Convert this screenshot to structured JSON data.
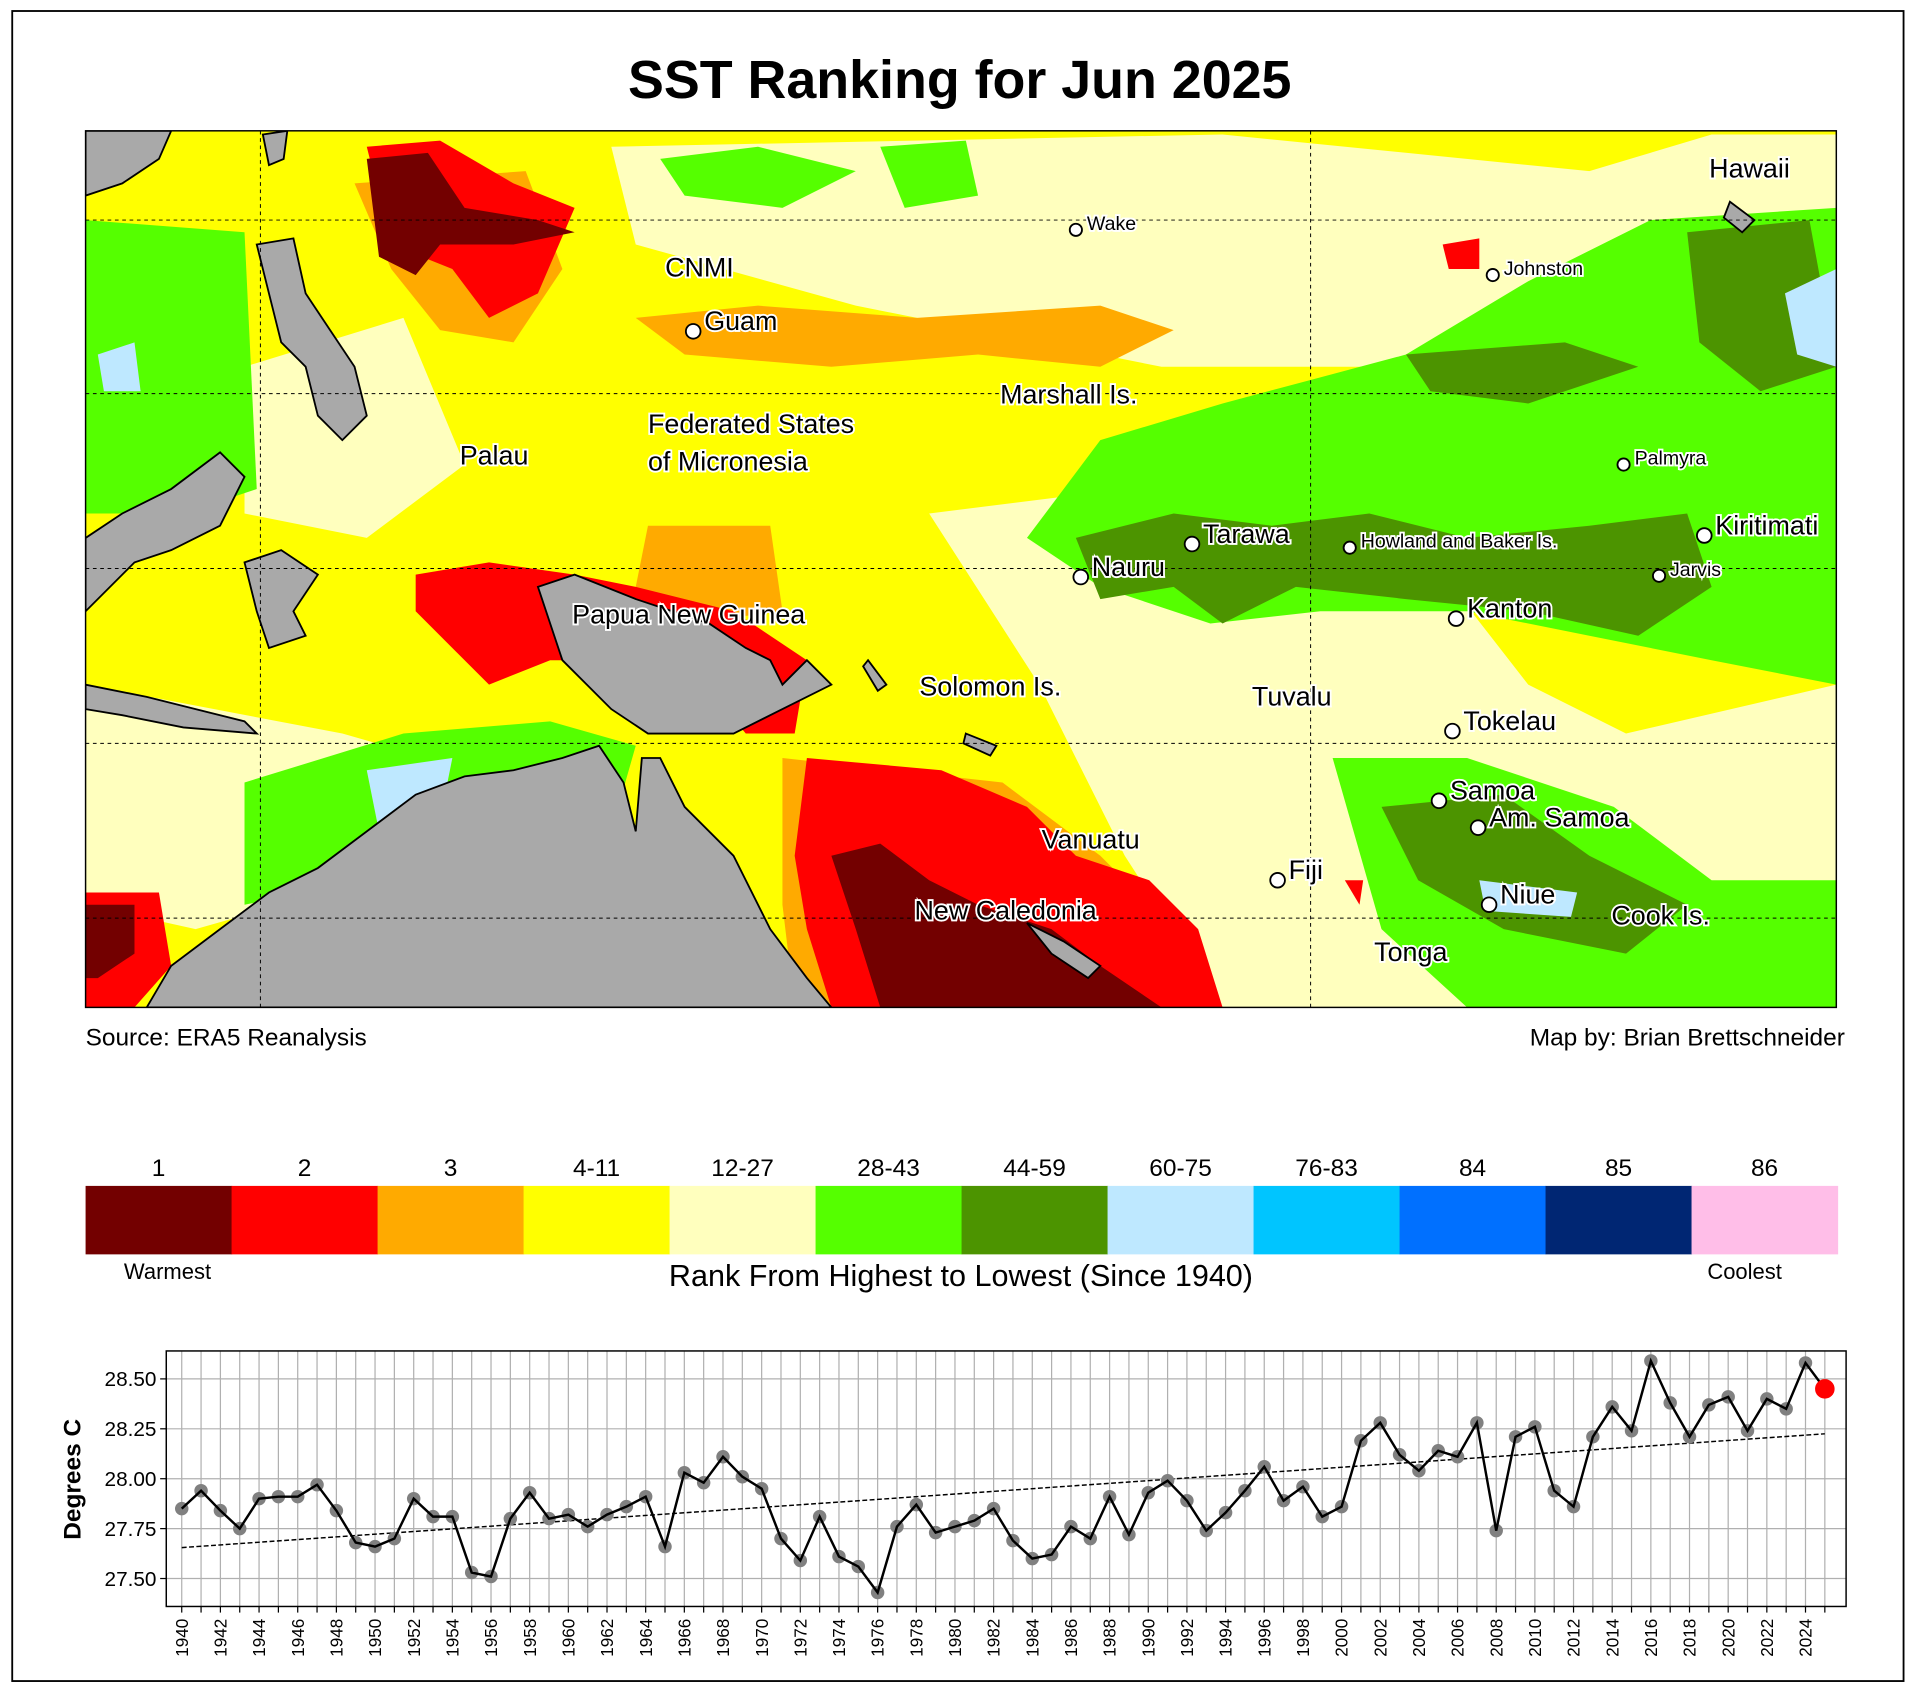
{
  "title": "SST Ranking for Jun 2025",
  "source": "Source: ERA5 Reanalysis",
  "credit": "Map by: Brian Brettschneider",
  "map_labels": [
    {
      "name": "Hawaii",
      "dot": false,
      "small": false
    },
    {
      "name": "Wake",
      "dot": true,
      "small": true
    },
    {
      "name": "Johnston",
      "dot": true,
      "small": true
    },
    {
      "name": "CNMI",
      "dot": false,
      "small": false
    },
    {
      "name": "Guam",
      "dot": true,
      "small": false
    },
    {
      "name": "Marshall Is.",
      "dot": false,
      "small": false
    },
    {
      "name": "Palau",
      "dot": false,
      "small": false
    },
    {
      "name": "Federated States",
      "dot": false,
      "small": false
    },
    {
      "name": "of Micronesia",
      "dot": false,
      "small": false
    },
    {
      "name": "Palmyra",
      "dot": true,
      "small": true
    },
    {
      "name": "Tarawa",
      "dot": true,
      "small": false
    },
    {
      "name": "Howland and Baker Is.",
      "dot": true,
      "small": true
    },
    {
      "name": "Kiritimati",
      "dot": true,
      "small": false
    },
    {
      "name": "Nauru",
      "dot": true,
      "small": false
    },
    {
      "name": "Jarvis",
      "dot": true,
      "small": true
    },
    {
      "name": "Papua New Guinea",
      "dot": false,
      "small": false
    },
    {
      "name": "Kanton",
      "dot": true,
      "small": false
    },
    {
      "name": "Solomon Is.",
      "dot": false,
      "small": false
    },
    {
      "name": "Tuvalu",
      "dot": false,
      "small": false
    },
    {
      "name": "Tokelau",
      "dot": true,
      "small": false
    },
    {
      "name": "Samoa",
      "dot": true,
      "small": false
    },
    {
      "name": "Am. Samoa",
      "dot": true,
      "small": false
    },
    {
      "name": "Vanuatu",
      "dot": false,
      "small": false
    },
    {
      "name": "Fiji",
      "dot": true,
      "small": false
    },
    {
      "name": "Niue",
      "dot": true,
      "small": false
    },
    {
      "name": "New Caledonia",
      "dot": false,
      "small": false
    },
    {
      "name": "Cook Is.",
      "dot": false,
      "small": false
    },
    {
      "name": "Tonga",
      "dot": false,
      "small": false
    }
  ],
  "legend": {
    "title": "Rank From Highest to Lowest (Since 1940)",
    "warm_label": "Warmest",
    "cool_label": "Coolest",
    "bins": [
      {
        "label": "1",
        "color": "#730000"
      },
      {
        "label": "2",
        "color": "#ff0000"
      },
      {
        "label": "3",
        "color": "#ffaa00"
      },
      {
        "label": "4-11",
        "color": "#ffff00"
      },
      {
        "label": "12-27",
        "color": "#ffffbe"
      },
      {
        "label": "28-43",
        "color": "#55ff00"
      },
      {
        "label": "44-59",
        "color": "#4c9400"
      },
      {
        "label": "60-75",
        "color": "#bee8ff"
      },
      {
        "label": "76-83",
        "color": "#00c5ff"
      },
      {
        "label": "84",
        "color": "#0070ff"
      },
      {
        "label": "85",
        "color": "#002673"
      },
      {
        "label": "86",
        "color": "#ffbee8"
      }
    ]
  },
  "chart_data": {
    "type": "line",
    "title": "",
    "xlabel": "",
    "ylabel": "Degrees C",
    "ylim": [
      27.36,
      28.64
    ],
    "yticks": [
      "27.50",
      "27.75",
      "28.00",
      "28.25",
      "28.50"
    ],
    "xlim": [
      1939.2,
      2026.1
    ],
    "grid": true,
    "x": [
      1940,
      1941,
      1942,
      1943,
      1944,
      1945,
      1946,
      1947,
      1948,
      1949,
      1950,
      1951,
      1952,
      1953,
      1954,
      1955,
      1956,
      1957,
      1958,
      1959,
      1960,
      1961,
      1962,
      1963,
      1964,
      1965,
      1966,
      1967,
      1968,
      1969,
      1970,
      1971,
      1972,
      1973,
      1974,
      1975,
      1976,
      1977,
      1978,
      1979,
      1980,
      1981,
      1982,
      1983,
      1984,
      1985,
      1986,
      1987,
      1988,
      1989,
      1990,
      1991,
      1992,
      1993,
      1994,
      1995,
      1996,
      1997,
      1998,
      1999,
      2000,
      2001,
      2002,
      2003,
      2004,
      2005,
      2006,
      2007,
      2008,
      2009,
      2010,
      2011,
      2012,
      2013,
      2014,
      2015,
      2016,
      2017,
      2018,
      2019,
      2020,
      2021,
      2022,
      2023,
      2024,
      2025
    ],
    "series": [
      {
        "name": "June SST",
        "values": [
          27.85,
          27.94,
          27.84,
          27.75,
          27.9,
          27.91,
          27.91,
          27.97,
          27.84,
          27.68,
          27.66,
          27.7,
          27.9,
          27.81,
          27.81,
          27.53,
          27.51,
          27.8,
          27.93,
          27.8,
          27.82,
          27.76,
          27.82,
          27.86,
          27.91,
          27.66,
          28.03,
          27.98,
          28.11,
          28.01,
          27.95,
          27.7,
          27.59,
          27.81,
          27.61,
          27.56,
          27.43,
          27.76,
          27.87,
          27.73,
          27.76,
          27.79,
          27.85,
          27.69,
          27.6,
          27.62,
          27.76,
          27.7,
          27.91,
          27.72,
          27.93,
          27.99,
          27.89,
          27.74,
          27.83,
          27.94,
          28.06,
          27.89,
          27.96,
          27.81,
          27.86,
          28.19,
          28.28,
          28.12,
          28.04,
          28.14,
          28.11,
          28.28,
          27.74,
          28.21,
          28.26,
          27.94,
          27.86,
          28.21,
          28.36,
          28.24,
          28.59,
          28.38,
          28.21,
          28.37,
          28.41,
          28.24,
          28.4,
          28.35,
          28.58,
          28.45
        ]
      },
      {
        "name": "Linear trend",
        "x": [
          1940,
          2025
        ],
        "values": [
          27.655,
          28.225
        ]
      }
    ],
    "highlight": {
      "x": 2025,
      "value": 28.45,
      "color": "#ff0000"
    },
    "xtick_labels": [
      "1940",
      "1942",
      "1944",
      "1946",
      "1948",
      "1950",
      "1952",
      "1954",
      "1956",
      "1958",
      "1960",
      "1962",
      "1964",
      "1966",
      "1968",
      "1970",
      "1972",
      "1974",
      "1976",
      "1978",
      "1980",
      "1982",
      "1984",
      "1986",
      "1988",
      "1990",
      "1992",
      "1994",
      "1996",
      "1998",
      "2000",
      "2002",
      "2004",
      "2006",
      "2008",
      "2010",
      "2012",
      "2014",
      "2016",
      "2018",
      "2020",
      "2022",
      "2024"
    ]
  }
}
